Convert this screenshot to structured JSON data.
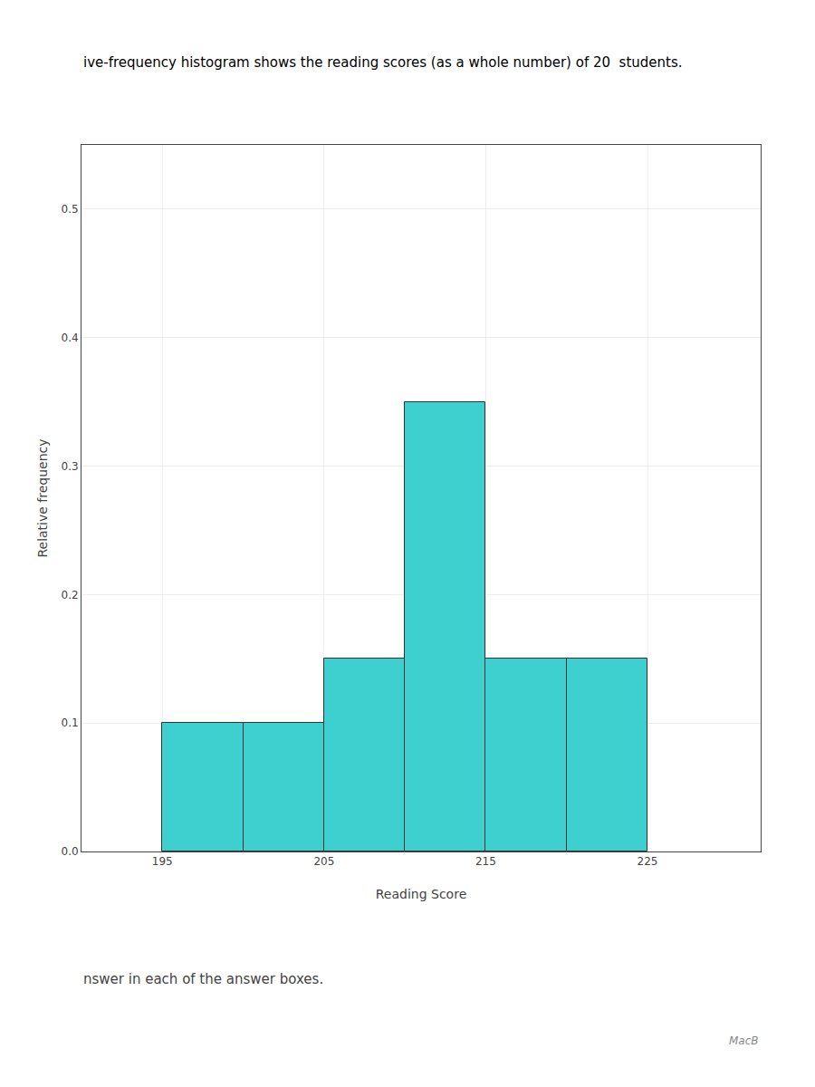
{
  "chart_data": {
    "type": "histogram",
    "x_label": "Reading Score",
    "y_label": "Relative frequency",
    "bins": [
      195,
      200,
      205,
      210,
      215,
      220,
      225
    ],
    "values": [
      0.1,
      0.1,
      0.15,
      0.35,
      0.15,
      0.15
    ],
    "color": "#3ECFCF",
    "xlim": [
      190,
      232
    ],
    "xticks": [
      195,
      205,
      215,
      225
    ],
    "ylim": [
      0,
      0.55
    ],
    "yticks": [
      {
        "value": 0,
        "label": "0.0"
      },
      0.1,
      0.2,
      0.3,
      0.4,
      0.5
    ],
    "grid": true,
    "annotations": [
      "ive-frequency histogram shows the reading scores (as a whole number) of 20  students.",
      "nswer in each of the answer boxes.",
      "MacB"
    ]
  }
}
